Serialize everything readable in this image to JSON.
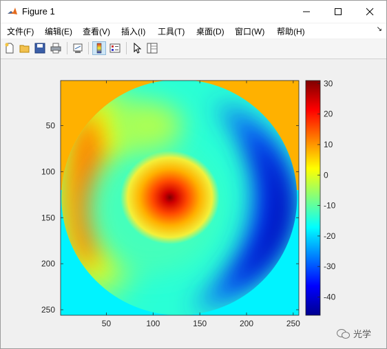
{
  "window": {
    "title": "Figure 1"
  },
  "menu": [
    {
      "label": "文件(F)",
      "name": "menu-file"
    },
    {
      "label": "编辑(E)",
      "name": "menu-edit"
    },
    {
      "label": "查看(V)",
      "name": "menu-view"
    },
    {
      "label": "插入(I)",
      "name": "menu-insert"
    },
    {
      "label": "工具(T)",
      "name": "menu-tools"
    },
    {
      "label": "桌面(D)",
      "name": "menu-desktop"
    },
    {
      "label": "窗口(W)",
      "name": "menu-window"
    },
    {
      "label": "帮助(H)",
      "name": "menu-help"
    }
  ],
  "toolbar_icons": [
    "new-figure-icon",
    "open-file-icon",
    "save-icon",
    "print-icon",
    "link-plot-icon",
    "insert-colorbar-icon",
    "insert-legend-icon",
    "pointer-icon",
    "property-inspector-icon"
  ],
  "chart_data": {
    "type": "heatmap",
    "colormap": "jet",
    "x_ticks": [
      "50",
      "100",
      "150",
      "200",
      "250"
    ],
    "y_ticks": [
      "50",
      "100",
      "150",
      "200",
      "250"
    ],
    "xlim": [
      1,
      256
    ],
    "ylim": [
      1,
      256
    ],
    "colorbar_ticks": [
      "30",
      "20",
      "10",
      "0",
      "-10",
      "-20",
      "-30",
      "-40"
    ],
    "color_range": [
      -46,
      31
    ],
    "background_top_value": 8,
    "background_bottom_value": -18
  },
  "watermark": {
    "text": "光学"
  }
}
